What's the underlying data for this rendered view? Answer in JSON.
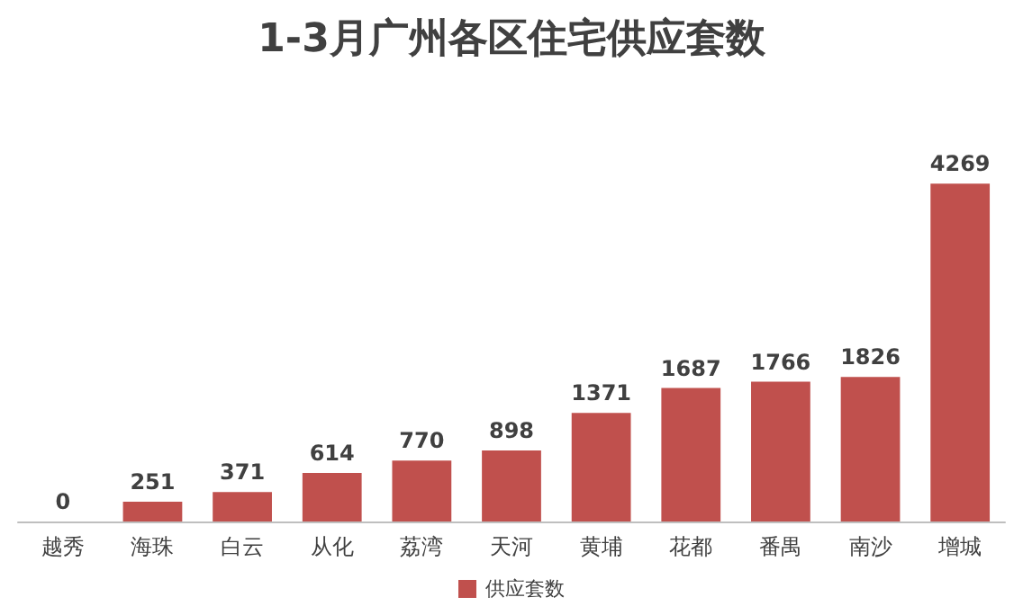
{
  "chart_data": {
    "type": "bar",
    "title": "1-3月广州各区住宅供应套数",
    "categories": [
      "越秀",
      "海珠",
      "白云",
      "从化",
      "荔湾",
      "天河",
      "黄埔",
      "花都",
      "番禺",
      "南沙",
      "增城"
    ],
    "series": [
      {
        "name": "供应套数",
        "color": "#c0504d",
        "values": [
          0,
          251,
          371,
          614,
          770,
          898,
          1371,
          1687,
          1766,
          1826,
          4269
        ]
      }
    ],
    "data_labels": true,
    "legend": "bottom"
  }
}
